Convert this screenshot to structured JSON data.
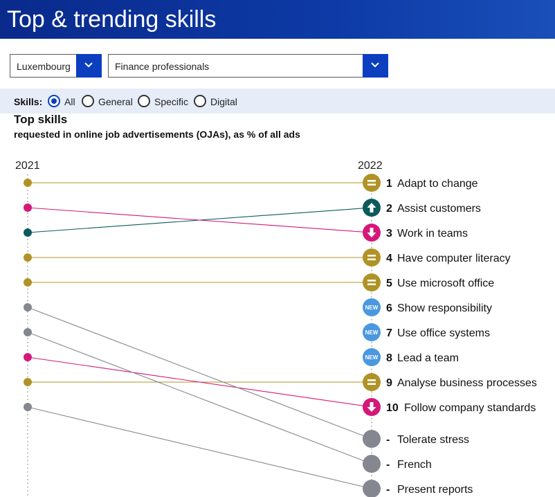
{
  "header": {
    "title": "Top & trending skills"
  },
  "filters": {
    "country": "Luxembourg",
    "occupation": "Finance professionals",
    "skills_label": "Skills:",
    "skill_options": [
      "All",
      "General",
      "Specific",
      "Digital"
    ],
    "selected_skill": "All"
  },
  "colors": {
    "gold": "#b09326",
    "pink": "#d4187a",
    "teal": "#0c5a5e",
    "gray": "#858790",
    "blue": "#4a98e0",
    "header_blue": "#0a2a8c",
    "button_blue": "#0b3fbf"
  },
  "chart_data": {
    "type": "slope",
    "title": "Top skills",
    "subtitle": "requested in online job advertisements (OJAs), as % of all ads",
    "left_year": "2021",
    "right_year": "2022",
    "skills": [
      {
        "rank_2021": 1,
        "rank_2022": "1",
        "name": "Adapt to change",
        "status": "same",
        "icon": "equals-icon",
        "color": "gold"
      },
      {
        "rank_2021": 3,
        "rank_2022": "2",
        "name": "Assist customers",
        "status": "up",
        "icon": "arrow-up-icon",
        "color": "teal"
      },
      {
        "rank_2021": 2,
        "rank_2022": "3",
        "name": "Work in teams",
        "status": "down",
        "icon": "arrow-down-icon",
        "color": "pink"
      },
      {
        "rank_2021": 4,
        "rank_2022": "4",
        "name": "Have computer literacy",
        "status": "same",
        "icon": "equals-icon",
        "color": "gold"
      },
      {
        "rank_2021": 5,
        "rank_2022": "5",
        "name": "Use microsoft office",
        "status": "same",
        "icon": "equals-icon",
        "color": "gold"
      },
      {
        "rank_2021": null,
        "rank_2022": "6",
        "name": "Show responsibility",
        "status": "new",
        "icon": "new-badge-icon",
        "color": "blue",
        "badge": "NEW"
      },
      {
        "rank_2021": null,
        "rank_2022": "7",
        "name": "Use office systems",
        "status": "new",
        "icon": "new-badge-icon",
        "color": "blue",
        "badge": "NEW"
      },
      {
        "rank_2021": null,
        "rank_2022": "8",
        "name": "Lead a team",
        "status": "new",
        "icon": "new-badge-icon",
        "color": "blue",
        "badge": "NEW"
      },
      {
        "rank_2021": 9,
        "rank_2022": "9",
        "name": "Analyse business processes",
        "status": "same",
        "icon": "equals-icon",
        "color": "gold"
      },
      {
        "rank_2021": 8,
        "rank_2022": "10",
        "name": "Follow company standards",
        "status": "down",
        "icon": "arrow-down-icon",
        "color": "pink"
      },
      {
        "rank_2021": 6,
        "rank_2022": "-",
        "name": "Tolerate stress",
        "status": "dropped",
        "icon": "",
        "color": "gray"
      },
      {
        "rank_2021": 7,
        "rank_2022": "-",
        "name": "French",
        "status": "dropped",
        "icon": "",
        "color": "gray"
      },
      {
        "rank_2021": 10,
        "rank_2022": "-",
        "name": "Present reports",
        "status": "dropped",
        "icon": "",
        "color": "gray"
      }
    ]
  }
}
